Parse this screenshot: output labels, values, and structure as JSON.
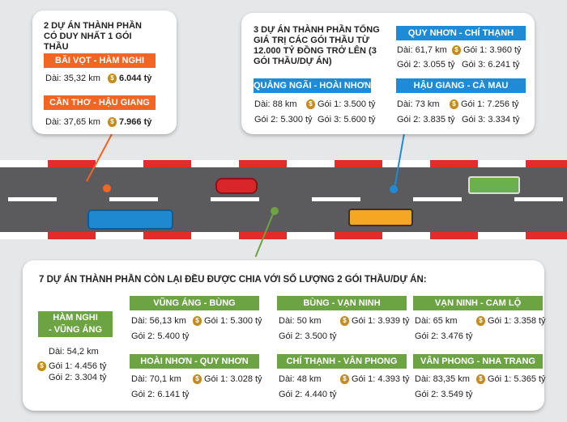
{
  "card1": {
    "title": "2 DỰ ÁN THÀNH PHẦN CÓ DUY NHẤT 1 GÓI THẦU",
    "projects": [
      {
        "name": "BÃI VỌT - HÀM NGHI",
        "length": "Dài: 35,32 km",
        "pkg": "6.044 tỷ"
      },
      {
        "name": "CẦN THƠ - HẬU GIANG",
        "length": "Dài: 37,65 km",
        "pkg": "7.966 tỷ"
      }
    ]
  },
  "card2": {
    "title": "3 DỰ ÁN THÀNH PHẦN TỔNG GIÁ TRỊ CÁC GÓI THẦU TỪ 12.000 TỶ ĐỒNG TRỞ LÊN (3 GÓI THẦU/DỰ ÁN)",
    "projects": [
      {
        "name": "QUY NHƠN - CHÍ THẠNH",
        "length": "Dài: 61,7 km",
        "g1": "Gói 1: 3.960 tỷ",
        "g2": "Gói 2: 3.055 tỷ",
        "g3": "Gói 3: 6.241 tỷ"
      },
      {
        "name": "QUẢNG NGÃI - HOÀI NHƠN",
        "length": "Dài: 88 km",
        "g1": "Gói 1: 3.500 tỷ",
        "g2": "Gói 2: 5.300 tỷ",
        "g3": "Gói 3: 5.600 tỷ"
      },
      {
        "name": "HẬU GIANG - CÀ MAU",
        "length": "Dài: 73 km",
        "g1": "Gói 1: 7.256 tỷ",
        "g2": "Gói 2: 3.835 tỷ",
        "g3": "Gói 3: 3.334 tỷ"
      }
    ]
  },
  "card3": {
    "title": "7 DỰ ÁN THÀNH PHẦN CÒN LẠI ĐỀU ĐƯỢC CHIA VỚI SỐ LƯỢNG 2 GÓI THẦU/DỰ ÁN:",
    "first": {
      "name1": "HÀM NGHI",
      "name2": "- VŨNG ÁNG",
      "length": "Dài: 54,2 km",
      "g1": "Gói 1: 4.456 tỷ",
      "g2": "Gói 2: 3.304 tỷ"
    },
    "projects": [
      {
        "name": "VŨNG ÁNG - BÙNG",
        "length": "Dài: 56,13 km",
        "g1": "Gói 1: 5.300 tỷ",
        "g2": "Gói 2: 5.400 tỷ"
      },
      {
        "name": "BÙNG - VẠN NINH",
        "length": "Dài: 50 km",
        "g1": "Gói 1: 3.939 tỷ",
        "g2": "Gói 2: 3.500 tỷ"
      },
      {
        "name": "VẠN NINH - CAM LỘ",
        "length": "Dài: 65 km",
        "g1": "Gói 1: 3.358 tỷ",
        "g2": "Gói 2: 3.476 tỷ"
      },
      {
        "name": "HOÀI NHƠN - QUY NHƠN",
        "length": "Dài: 70,1 km",
        "g1": "Gói 1: 3.028 tỷ",
        "g2": "Gói 2: 6.141 tỷ"
      },
      {
        "name": "CHÍ THẠNH - VÂN PHONG",
        "length": "Dài: 48 km",
        "g1": "Gói 1: 4.393 tỷ",
        "g2": "Gói 2: 4.440 tỷ"
      },
      {
        "name": "VÂN PHONG - NHA TRANG",
        "length": "Dài: 83,35 km",
        "g1": "Gói 1: 5.365 tỷ",
        "g2": "Gói 2: 3.549 tỷ"
      }
    ]
  },
  "icons": {
    "money": "money-bag-icon"
  },
  "colors": {
    "orange": "#f26522",
    "blue": "#1f8ad6",
    "green": "#6ca443",
    "road": "#5b5b5d",
    "curb_red": "#e32b2b"
  }
}
